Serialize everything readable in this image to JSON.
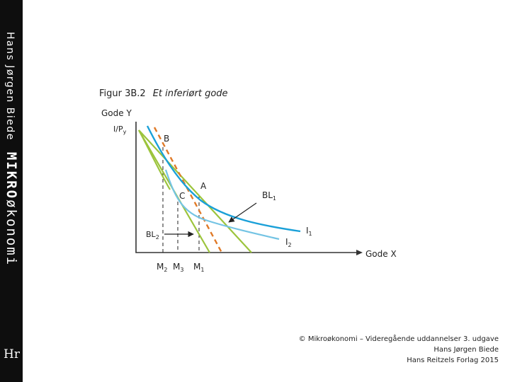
{
  "sidebar": {
    "author": "Hans Jørgen Biede",
    "brand_bold": "MIKRO",
    "brand_light": "økonomi",
    "logo": "Hr"
  },
  "figure": {
    "number": "Figur 3B.2",
    "title": "Et inferiørt gode"
  },
  "diagram": {
    "y_axis_label": "Gode Y",
    "y_intercept_label": "I/P",
    "y_intercept_sub": "y",
    "x_axis_label": "Gode X",
    "points": {
      "b": "B",
      "a": "A",
      "c": "C"
    },
    "budget_lines": {
      "bl1": "BL",
      "bl1_sub": "1",
      "bl2": "BL",
      "bl2_sub": "2"
    },
    "curves": {
      "i1": "I",
      "i1_sub": "1",
      "i2": "I",
      "i2_sub": "2"
    },
    "x_ticks": {
      "m2": "M",
      "m2_sub": "2",
      "m3": "M",
      "m3_sub": "3",
      "m1": "M",
      "m1_sub": "1"
    },
    "colors": {
      "dark_blue": "#1aa0d8",
      "light_blue": "#74c4e4",
      "green": "#9cc43c",
      "orange": "#e07a28",
      "axis": "#333333"
    }
  },
  "credits": {
    "line1": "© Mikroøkonomi – Videregående uddannelser 3. udgave",
    "line2": "Hans Jørgen Biede",
    "line3": "Hans Reitzels Forlag 2015"
  }
}
